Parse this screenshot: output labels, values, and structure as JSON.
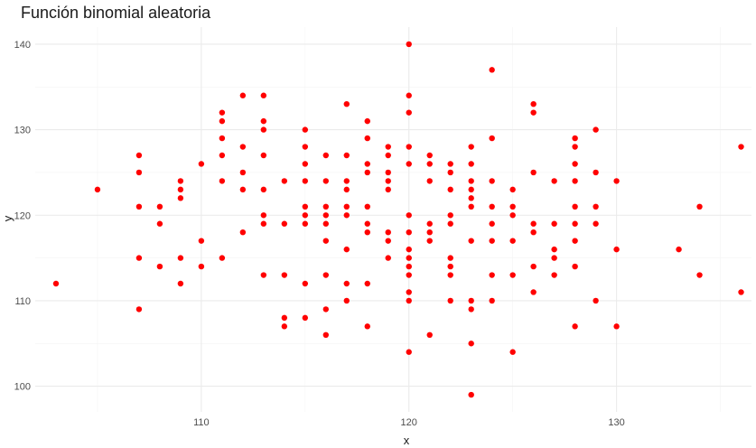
{
  "chart_data": {
    "type": "scatter",
    "title": "Función binomial aleatoria",
    "xlabel": "x",
    "ylabel": "y",
    "xlim": [
      102,
      136.5
    ],
    "ylim": [
      97,
      142
    ],
    "x_ticks": [
      110,
      120,
      130
    ],
    "y_ticks": [
      100,
      110,
      120,
      130,
      140
    ],
    "grid": true,
    "point_color": "#ff0000",
    "points": [
      [
        103,
        112
      ],
      [
        105,
        123
      ],
      [
        107,
        127
      ],
      [
        107,
        125
      ],
      [
        107,
        121
      ],
      [
        107,
        115
      ],
      [
        107,
        109
      ],
      [
        108,
        121
      ],
      [
        108,
        119
      ],
      [
        108,
        114
      ],
      [
        109,
        124
      ],
      [
        109,
        123
      ],
      [
        109,
        122
      ],
      [
        109,
        115
      ],
      [
        109,
        112
      ],
      [
        110,
        126
      ],
      [
        110,
        117
      ],
      [
        110,
        114
      ],
      [
        111,
        132
      ],
      [
        111,
        131
      ],
      [
        111,
        129
      ],
      [
        111,
        127
      ],
      [
        111,
        124
      ],
      [
        111,
        115
      ],
      [
        112,
        134
      ],
      [
        112,
        128
      ],
      [
        112,
        125
      ],
      [
        112,
        123
      ],
      [
        112,
        118
      ],
      [
        113,
        134
      ],
      [
        113,
        131
      ],
      [
        113,
        130
      ],
      [
        113,
        127
      ],
      [
        113,
        123
      ],
      [
        113,
        120
      ],
      [
        113,
        119
      ],
      [
        113,
        113
      ],
      [
        114,
        124
      ],
      [
        114,
        119
      ],
      [
        114,
        113
      ],
      [
        114,
        108
      ],
      [
        114,
        107
      ],
      [
        115,
        130
      ],
      [
        115,
        128
      ],
      [
        115,
        126
      ],
      [
        115,
        124
      ],
      [
        115,
        121
      ],
      [
        115,
        120
      ],
      [
        115,
        119
      ],
      [
        115,
        112
      ],
      [
        115,
        108
      ],
      [
        116,
        127
      ],
      [
        116,
        124
      ],
      [
        116,
        121
      ],
      [
        116,
        120
      ],
      [
        116,
        119
      ],
      [
        116,
        117
      ],
      [
        116,
        113
      ],
      [
        116,
        109
      ],
      [
        116,
        106
      ],
      [
        117,
        133
      ],
      [
        117,
        127
      ],
      [
        117,
        124
      ],
      [
        117,
        123
      ],
      [
        117,
        121
      ],
      [
        117,
        120
      ],
      [
        117,
        116
      ],
      [
        117,
        112
      ],
      [
        117,
        110
      ],
      [
        118,
        131
      ],
      [
        118,
        129
      ],
      [
        118,
        126
      ],
      [
        118,
        125
      ],
      [
        118,
        121
      ],
      [
        118,
        119
      ],
      [
        118,
        118
      ],
      [
        118,
        112
      ],
      [
        118,
        107
      ],
      [
        119,
        128
      ],
      [
        119,
        127
      ],
      [
        119,
        125
      ],
      [
        119,
        124
      ],
      [
        119,
        123
      ],
      [
        119,
        118
      ],
      [
        119,
        117
      ],
      [
        119,
        115
      ],
      [
        120,
        140
      ],
      [
        120,
        134
      ],
      [
        120,
        132
      ],
      [
        120,
        128
      ],
      [
        120,
        126
      ],
      [
        120,
        120
      ],
      [
        120,
        118
      ],
      [
        120,
        116
      ],
      [
        120,
        115
      ],
      [
        120,
        114
      ],
      [
        120,
        113
      ],
      [
        120,
        111
      ],
      [
        120,
        110
      ],
      [
        120,
        104
      ],
      [
        121,
        127
      ],
      [
        121,
        126
      ],
      [
        121,
        124
      ],
      [
        121,
        119
      ],
      [
        121,
        118
      ],
      [
        121,
        117
      ],
      [
        121,
        106
      ],
      [
        122,
        126
      ],
      [
        122,
        125
      ],
      [
        122,
        123
      ],
      [
        122,
        120
      ],
      [
        122,
        119
      ],
      [
        122,
        115
      ],
      [
        122,
        114
      ],
      [
        122,
        113
      ],
      [
        122,
        110
      ],
      [
        123,
        128
      ],
      [
        123,
        126
      ],
      [
        123,
        124
      ],
      [
        123,
        123
      ],
      [
        123,
        122
      ],
      [
        123,
        121
      ],
      [
        123,
        117
      ],
      [
        123,
        110
      ],
      [
        123,
        109
      ],
      [
        123,
        105
      ],
      [
        123,
        99
      ],
      [
        124,
        137
      ],
      [
        124,
        129
      ],
      [
        124,
        124
      ],
      [
        124,
        121
      ],
      [
        124,
        119
      ],
      [
        124,
        117
      ],
      [
        124,
        113
      ],
      [
        124,
        110
      ],
      [
        125,
        123
      ],
      [
        125,
        121
      ],
      [
        125,
        120
      ],
      [
        125,
        117
      ],
      [
        125,
        113
      ],
      [
        125,
        104
      ],
      [
        126,
        133
      ],
      [
        126,
        132
      ],
      [
        126,
        125
      ],
      [
        126,
        119
      ],
      [
        126,
        118
      ],
      [
        126,
        114
      ],
      [
        126,
        111
      ],
      [
        127,
        124
      ],
      [
        127,
        119
      ],
      [
        127,
        116
      ],
      [
        127,
        115
      ],
      [
        127,
        113
      ],
      [
        128,
        129
      ],
      [
        128,
        128
      ],
      [
        128,
        126
      ],
      [
        128,
        124
      ],
      [
        128,
        121
      ],
      [
        128,
        119
      ],
      [
        128,
        117
      ],
      [
        128,
        114
      ],
      [
        128,
        107
      ],
      [
        129,
        130
      ],
      [
        129,
        125
      ],
      [
        129,
        121
      ],
      [
        129,
        119
      ],
      [
        129,
        110
      ],
      [
        130,
        124
      ],
      [
        130,
        116
      ],
      [
        130,
        107
      ],
      [
        133,
        116
      ],
      [
        134,
        121
      ],
      [
        134,
        113
      ],
      [
        136,
        128
      ],
      [
        136,
        111
      ]
    ]
  }
}
